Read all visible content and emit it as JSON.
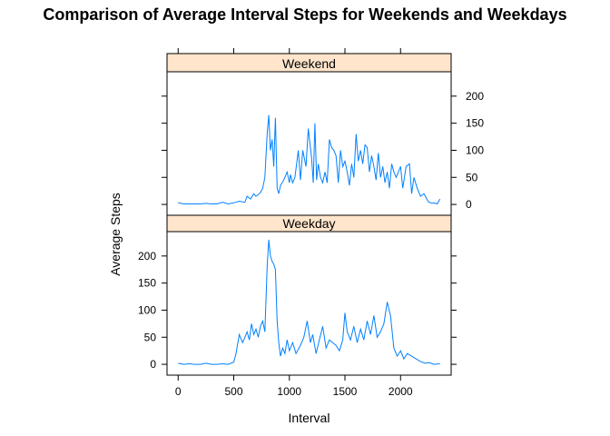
{
  "chart_data": {
    "type": "line",
    "title": "Comparison of Average Interval Steps for Weekends and Weekdays",
    "xlabel": "Interval",
    "ylabel": "Average Steps",
    "xlim": [
      -100,
      2455
    ],
    "ylim": [
      -20,
      245
    ],
    "xticks": [
      0,
      500,
      1000,
      1500,
      2000
    ],
    "yticks": [
      0,
      50,
      100,
      150,
      200
    ],
    "colors": {
      "line": "#0080ff",
      "strip": "#ffe5cc",
      "axis": "#000000"
    },
    "panels": [
      {
        "name": "Weekend",
        "x": [
          0,
          50,
          100,
          150,
          200,
          250,
          300,
          350,
          400,
          450,
          500,
          550,
          600,
          620,
          650,
          680,
          700,
          720,
          740,
          760,
          780,
          800,
          815,
          830,
          845,
          860,
          875,
          890,
          905,
          920,
          950,
          980,
          1000,
          1010,
          1030,
          1050,
          1080,
          1100,
          1120,
          1150,
          1170,
          1200,
          1215,
          1230,
          1245,
          1260,
          1280,
          1300,
          1320,
          1340,
          1360,
          1380,
          1400,
          1420,
          1440,
          1460,
          1480,
          1500,
          1520,
          1540,
          1560,
          1580,
          1600,
          1620,
          1640,
          1660,
          1680,
          1700,
          1720,
          1740,
          1760,
          1780,
          1800,
          1820,
          1840,
          1860,
          1880,
          1900,
          1920,
          1940,
          1960,
          1980,
          2000,
          2020,
          2050,
          2080,
          2100,
          2120,
          2150,
          2180,
          2210,
          2250,
          2280,
          2300,
          2330,
          2355
        ],
        "values": [
          3,
          1,
          1,
          1,
          1,
          2,
          1,
          1,
          4,
          1,
          3,
          6,
          4,
          15,
          10,
          20,
          15,
          18,
          22,
          30,
          50,
          130,
          165,
          100,
          120,
          70,
          160,
          30,
          20,
          35,
          45,
          60,
          40,
          55,
          40,
          50,
          100,
          45,
          100,
          70,
          140,
          85,
          40,
          150,
          45,
          75,
          50,
          40,
          60,
          40,
          120,
          105,
          100,
          90,
          40,
          100,
          70,
          80,
          60,
          35,
          75,
          50,
          130,
          80,
          100,
          75,
          110,
          105,
          60,
          90,
          70,
          45,
          95,
          50,
          70,
          40,
          60,
          30,
          75,
          60,
          50,
          60,
          70,
          30,
          70,
          75,
          20,
          50,
          30,
          15,
          20,
          5,
          2,
          3,
          1,
          10
        ]
      },
      {
        "name": "Weekday",
        "x": [
          0,
          50,
          100,
          150,
          200,
          250,
          300,
          350,
          400,
          450,
          500,
          520,
          550,
          580,
          600,
          620,
          640,
          660,
          680,
          700,
          720,
          740,
          760,
          780,
          800,
          815,
          830,
          845,
          860,
          875,
          890,
          905,
          920,
          940,
          960,
          980,
          1000,
          1030,
          1060,
          1100,
          1130,
          1160,
          1190,
          1210,
          1240,
          1270,
          1300,
          1330,
          1360,
          1390,
          1420,
          1450,
          1480,
          1500,
          1520,
          1550,
          1580,
          1610,
          1640,
          1670,
          1700,
          1730,
          1760,
          1790,
          1820,
          1850,
          1880,
          1910,
          1940,
          1970,
          2000,
          2030,
          2060,
          2100,
          2140,
          2180,
          2220,
          2260,
          2300,
          2355
        ],
        "values": [
          2,
          0,
          1,
          0,
          0,
          2,
          0,
          0,
          1,
          0,
          4,
          20,
          55,
          40,
          50,
          60,
          45,
          75,
          55,
          65,
          50,
          70,
          80,
          60,
          180,
          230,
          200,
          190,
          185,
          175,
          80,
          40,
          15,
          30,
          20,
          45,
          25,
          40,
          20,
          35,
          50,
          80,
          40,
          55,
          20,
          45,
          70,
          30,
          45,
          40,
          35,
          25,
          45,
          95,
          60,
          45,
          70,
          40,
          65,
          45,
          80,
          55,
          90,
          50,
          60,
          75,
          115,
          90,
          30,
          15,
          25,
          10,
          20,
          15,
          10,
          5,
          2,
          3,
          0,
          1
        ]
      }
    ]
  }
}
